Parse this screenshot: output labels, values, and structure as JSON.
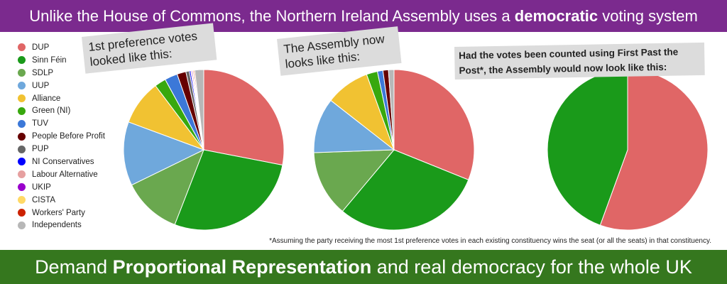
{
  "banner_top": {
    "before": "Unlike the House of Commons, the Northern Ireland Assembly uses a ",
    "bold": "democratic",
    "after": " voting system"
  },
  "banner_bottom": {
    "before": "Demand ",
    "bold": "Proportional Representation",
    "after": " and real democracy for the whole UK"
  },
  "callouts": {
    "first_pref": "1st preference votes looked like this:",
    "assembly_now": "The Assembly now looks like this:",
    "fptp": "Had the votes been counted using First Past the Post*, the Assembly would now look like this:"
  },
  "footnote": "*Assuming the party receiving the most 1st preference votes in each existing constituency wins the seat (or all the seats) in that constituency.",
  "legend": [
    {
      "label": "DUP",
      "color": "#e06666"
    },
    {
      "label": "Sinn Féin",
      "color": "#1a9a1a"
    },
    {
      "label": "SDLP",
      "color": "#6aa84f"
    },
    {
      "label": "UUP",
      "color": "#6fa8dc"
    },
    {
      "label": "Alliance",
      "color": "#f1c232"
    },
    {
      "label": "Green (NI)",
      "color": "#38a80e"
    },
    {
      "label": "TUV",
      "color": "#3c78d8"
    },
    {
      "label": "People Before Profit",
      "color": "#660000"
    },
    {
      "label": "PUP",
      "color": "#666666"
    },
    {
      "label": "NI Conservatives",
      "color": "#0000ff"
    },
    {
      "label": "Labour Alternative",
      "color": "#e6a0a0"
    },
    {
      "label": "UKIP",
      "color": "#9900cc"
    },
    {
      "label": "CISTA",
      "color": "#ffd966"
    },
    {
      "label": "Workers' Party",
      "color": "#cc2200"
    },
    {
      "label": "Independents",
      "color": "#b7b7b7"
    }
  ],
  "chart_data": [
    {
      "type": "pie",
      "title": "1st preference votes looked like this:",
      "categories": [
        "DUP",
        "Sinn Féin",
        "SDLP",
        "UUP",
        "Alliance",
        "Green (NI)",
        "TUV",
        "People Before Profit",
        "PUP",
        "NI Conservatives",
        "Labour Alternative",
        "UKIP",
        "CISTA",
        "Workers' Party",
        "Independents"
      ],
      "values": [
        28.1,
        27.9,
        11.9,
        12.9,
        9.1,
        2.3,
        2.6,
        1.8,
        0.7,
        0.3,
        0.2,
        0.2,
        0.2,
        0.2,
        1.8
      ]
    },
    {
      "type": "pie",
      "title": "The Assembly now looks like this:",
      "categories": [
        "DUP",
        "Sinn Féin",
        "SDLP",
        "UUP",
        "Alliance",
        "Green (NI)",
        "TUV",
        "People Before Profit",
        "Independents"
      ],
      "values": [
        28,
        27,
        12,
        10,
        8,
        2,
        1,
        1,
        1
      ]
    },
    {
      "type": "pie",
      "title": "Had the votes been counted using First Past the Post*, the Assembly would now look like this:",
      "categories": [
        "DUP",
        "Sinn Féin"
      ],
      "values": [
        50,
        40
      ]
    }
  ]
}
